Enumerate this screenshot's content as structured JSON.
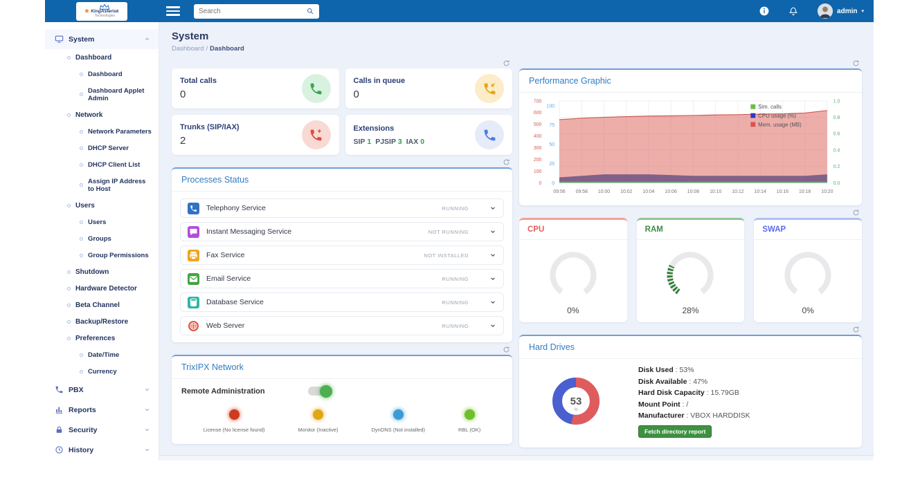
{
  "app": {
    "navbar": {
      "logo": {
        "line1": "KingAsterisk",
        "line2": "Technologies"
      },
      "search_placeholder": "Search",
      "username": "admin"
    },
    "page": {
      "title": "System",
      "breadcrumb": {
        "parent": "Dashboard",
        "current": "Dashboard"
      }
    }
  },
  "sidebar": {
    "items": [
      {
        "label": "System",
        "depth": 0,
        "icon": "monitor-icon",
        "chevron": "up",
        "active": true
      },
      {
        "label": "Dashboard",
        "depth": 1
      },
      {
        "label": "Dashboard",
        "depth": 2
      },
      {
        "label": "Dashboard Applet Admin",
        "depth": 2
      },
      {
        "label": "Network",
        "depth": 1
      },
      {
        "label": "Network Parameters",
        "depth": 2
      },
      {
        "label": "DHCP Server",
        "depth": 2
      },
      {
        "label": "DHCP Client List",
        "depth": 2
      },
      {
        "label": "Assign IP Address to Host",
        "depth": 2
      },
      {
        "label": "Users",
        "depth": 1
      },
      {
        "label": "Users",
        "depth": 2
      },
      {
        "label": "Groups",
        "depth": 2
      },
      {
        "label": "Group Permissions",
        "depth": 2
      },
      {
        "label": "Shutdown",
        "depth": 1
      },
      {
        "label": "Hardware Detector",
        "depth": 1
      },
      {
        "label": "Beta Channel",
        "depth": 1
      },
      {
        "label": "Backup/Restore",
        "depth": 1
      },
      {
        "label": "Preferences",
        "depth": 1
      },
      {
        "label": "Date/Time",
        "depth": 2
      },
      {
        "label": "Currency",
        "depth": 2
      },
      {
        "label": "PBX",
        "depth": 0,
        "icon": "phone-icon",
        "chevron": "down"
      },
      {
        "label": "Reports",
        "depth": 0,
        "icon": "bar-chart-icon",
        "chevron": "down"
      },
      {
        "label": "Security",
        "depth": 0,
        "icon": "lock-icon",
        "chevron": "down"
      },
      {
        "label": "History",
        "depth": 0,
        "icon": "history-icon",
        "chevron": "down"
      }
    ]
  },
  "stat_cards": [
    {
      "label": "Total calls",
      "value": "0",
      "icon": "phone-icon",
      "icon_color": "#34a853",
      "icon_bg": "#d9f2df"
    },
    {
      "label": "Calls in queue",
      "value": "0",
      "icon": "phone-incoming-icon",
      "icon_color": "#e8a413",
      "icon_bg": "#fcecc8"
    },
    {
      "label": "Trunks (SIP/IAX)",
      "value": "2",
      "icon": "phone-plus-icon",
      "icon_color": "#dd4b39",
      "icon_bg": "#f9d9d4"
    },
    {
      "label": "Extensions",
      "value": "",
      "icon": "phone-icon",
      "icon_color": "#4a7de2",
      "icon_bg": "#e6ebfa",
      "extensions": [
        {
          "label": "SIP",
          "count": "1"
        },
        {
          "label": "PJSIP",
          "count": "3"
        },
        {
          "label": "IAX",
          "count": "0"
        }
      ]
    }
  ],
  "panels": {
    "performance_title": "Performance Graphic"
  },
  "chart_data": {
    "type": "area",
    "title": "Performance Graphic",
    "x": [
      "09:56",
      "09:58",
      "10:00",
      "10:02",
      "10:04",
      "10:06",
      "10:08",
      "10:10",
      "10:12",
      "10:14",
      "10:16",
      "10:18",
      "10:20"
    ],
    "series": [
      {
        "name": "Sim. calls",
        "color": "#6abf3f",
        "axis": "right",
        "values": [
          0,
          0,
          0,
          0,
          0,
          0,
          0,
          0,
          0,
          0,
          0,
          0,
          0
        ]
      },
      {
        "name": "CPU usage (%)",
        "color": "#2b38c8",
        "axis": "left_cpu",
        "values": [
          7,
          9,
          11,
          11,
          11,
          10,
          9,
          9,
          9,
          9,
          9,
          9,
          11
        ]
      },
      {
        "name": "Mem. usage (MB)",
        "color": "#d9534f",
        "axis": "left_mem",
        "values": [
          540,
          552,
          560,
          566,
          570,
          572,
          576,
          580,
          582,
          586,
          590,
          596,
          618
        ]
      }
    ],
    "axes": {
      "left_mem": {
        "ticks": [
          0,
          100,
          200,
          300,
          400,
          500,
          600,
          700
        ],
        "range": [
          0,
          700
        ],
        "color": "#d65b55"
      },
      "left_cpu": {
        "ticks": [
          0,
          25,
          50,
          75,
          100
        ],
        "range": [
          0,
          100
        ],
        "color": "#56a8e8"
      },
      "right": {
        "ticks": [
          0.0,
          0.2,
          0.4,
          0.6,
          0.8,
          1.0
        ],
        "range": [
          0,
          1
        ],
        "color": "#58b368"
      }
    },
    "legend_position": "top-right",
    "grid": true
  },
  "processes": {
    "title": "Processes Status",
    "rows": [
      {
        "name": "Telephony Service",
        "status": "RUNNING",
        "icon": "telephony-icon"
      },
      {
        "name": "Instant Messaging Service",
        "status": "NOT RUNNING",
        "icon": "instant-messaging-icon"
      },
      {
        "name": "Fax Service",
        "status": "NOT INSTALLED",
        "icon": "fax-icon"
      },
      {
        "name": "Email Service",
        "status": "RUNNING",
        "icon": "email-icon"
      },
      {
        "name": "Database Service",
        "status": "RUNNING",
        "icon": "database-icon"
      },
      {
        "name": "Web Server",
        "status": "RUNNING",
        "icon": "web-server-icon"
      }
    ]
  },
  "gauges": [
    {
      "label": "CPU",
      "percent": 0,
      "display": "0%",
      "label_color": "#e25c5c",
      "accent": "#f2a19a",
      "fill": "#2e7d32"
    },
    {
      "label": "RAM",
      "percent": 28,
      "display": "28%",
      "label_color": "#3c8d45",
      "accent": "#90c695",
      "fill": "#2e7d32"
    },
    {
      "label": "SWAP",
      "percent": 0,
      "display": "0%",
      "label_color": "#5b6bf0",
      "accent": "#b3bdf2",
      "fill": "#2e7d32"
    }
  ],
  "trixipx": {
    "title": "TrixIPX Network",
    "toggle_label": "Remote Administration",
    "toggle_on": true,
    "lights": [
      {
        "label": "License (No license found)",
        "color": "#cc3b1e"
      },
      {
        "label": "Monitor (Inactive)",
        "color": "#e0a618"
      },
      {
        "label": "DynDNS (Not installed)",
        "color": "#3d9bd4"
      },
      {
        "label": "RBL (OK)",
        "color": "#6fbf2a"
      }
    ]
  },
  "hard_drives": {
    "title": "Hard Drives",
    "donut": {
      "value": "53",
      "unit": "%",
      "used_percent": 53,
      "used_color": "#e05c5c",
      "free_color": "#4a5fd0"
    },
    "details": [
      {
        "label": "Disk Used",
        "value": "53%"
      },
      {
        "label": "Disk Available",
        "value": "47%"
      },
      {
        "label": "Hard Disk Capacity",
        "value": "15.79GB"
      },
      {
        "label": "Mount Point",
        "value": "/"
      },
      {
        "label": "Manufacturer",
        "value": "VBOX HARDDISK"
      }
    ],
    "button_label": "Fetch directory report"
  }
}
